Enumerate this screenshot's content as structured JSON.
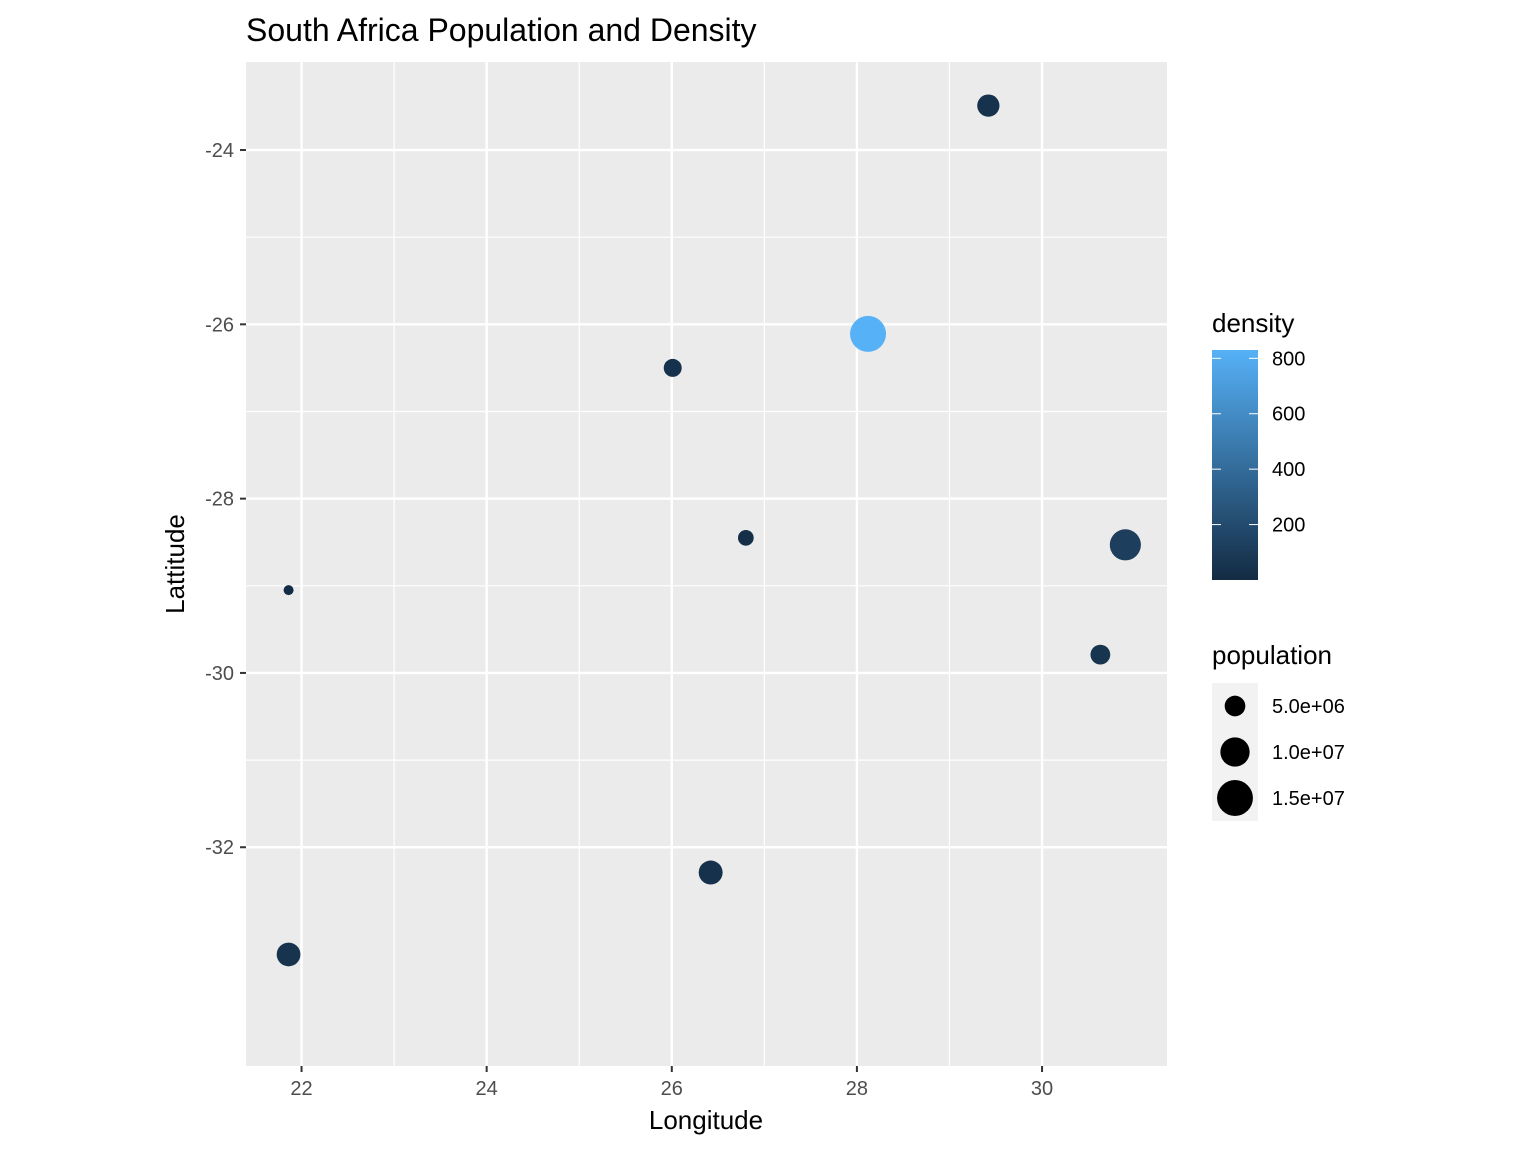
{
  "chart_data": {
    "type": "scatter",
    "title": "South Africa Population and Density",
    "xlabel": "Longitude",
    "ylabel": "Lattitude",
    "xlim": [
      21.4,
      31.35
    ],
    "ylim": [
      -34.51,
      -22.99
    ],
    "xticks": [
      22,
      24,
      26,
      28,
      30
    ],
    "yticks": [
      -24,
      -26,
      -28,
      -30,
      -32
    ],
    "xtick_labels": [
      "22",
      "24",
      "26",
      "28",
      "30"
    ],
    "ytick_labels": [
      "-24",
      "-26",
      "-28",
      "-30",
      "-32"
    ],
    "grid": true,
    "panel_background": "#ebebeb",
    "points": [
      {
        "x": 29.42,
        "y": -23.49,
        "population": 5800000,
        "density": 46
      },
      {
        "x": 28.12,
        "y": -26.11,
        "population": 15100000,
        "density": 830
      },
      {
        "x": 26.01,
        "y": -26.5,
        "population": 3800000,
        "density": 36
      },
      {
        "x": 26.8,
        "y": -28.45,
        "population": 2900000,
        "density": 22
      },
      {
        "x": 30.9,
        "y": -28.53,
        "population": 11300000,
        "density": 120
      },
      {
        "x": 21.86,
        "y": -29.05,
        "population": 1200000,
        "density": 3
      },
      {
        "x": 30.63,
        "y": -29.79,
        "population": 4600000,
        "density": 60
      },
      {
        "x": 26.42,
        "y": -32.29,
        "population": 6700000,
        "density": 39
      },
      {
        "x": 21.86,
        "y": -33.23,
        "population": 6600000,
        "density": 52
      }
    ],
    "color_legend": {
      "title": "density",
      "range": [
        0,
        830
      ],
      "ticks": [
        200,
        400,
        600,
        800
      ],
      "tick_labels": [
        "200",
        "400",
        "600",
        "800"
      ],
      "low_color": "#132b43",
      "high_color": "#56b1f7"
    },
    "size_legend": {
      "title": "population",
      "range": [
        1200000,
        15100000
      ],
      "entries": [
        {
          "label": "5.0e+06",
          "value": 5000000
        },
        {
          "label": "1.0e+07",
          "value": 10000000
        },
        {
          "label": "1.5e+07",
          "value": 15000000
        }
      ]
    }
  }
}
